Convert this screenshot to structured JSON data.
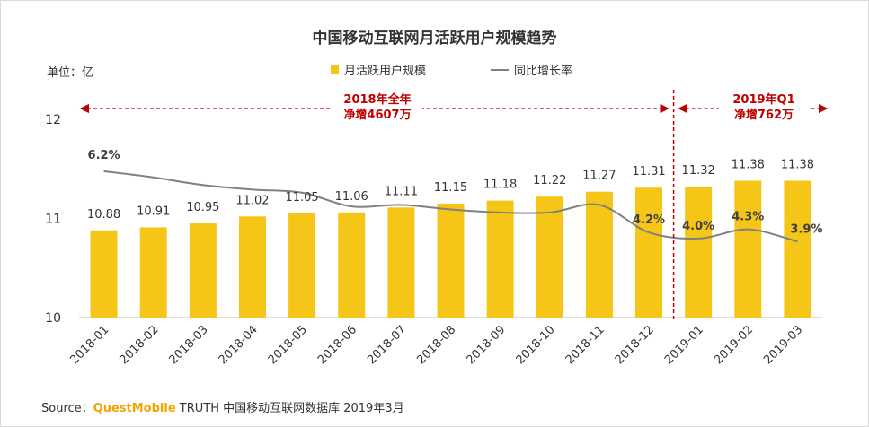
{
  "chart_data": {
    "type": "bar",
    "title": "中国移动互联网月活跃用户规模趋势",
    "unit": "单位：亿",
    "categories": [
      "2018-01",
      "2018-02",
      "2018-03",
      "2018-04",
      "2018-05",
      "2018-06",
      "2018-07",
      "2018-08",
      "2018-09",
      "2018-10",
      "2018-11",
      "2018-12",
      "2019-01",
      "2019-02",
      "2019-03"
    ],
    "series": [
      {
        "name": "月活跃用户规模",
        "type": "bar",
        "color": "#F5C518",
        "values": [
          10.88,
          10.91,
          10.95,
          11.02,
          11.05,
          11.06,
          11.11,
          11.15,
          11.18,
          11.22,
          11.27,
          11.31,
          11.32,
          11.38,
          11.38
        ]
      },
      {
        "name": "同比增长率",
        "type": "line",
        "color": "#808080",
        "values": [
          6.2,
          6.0,
          5.75,
          5.6,
          5.5,
          5.05,
          5.1,
          4.95,
          4.85,
          4.85,
          5.1,
          4.2,
          4.0,
          4.3,
          3.9
        ]
      }
    ],
    "value_labels": [
      "10.88",
      "10.91",
      "10.95",
      "11.02",
      "11.05",
      "11.06",
      "11.11",
      "11.15",
      "11.18",
      "11.22",
      "11.27",
      "11.31",
      "11.32",
      "11.38",
      "11.38"
    ],
    "rate_labels": [
      {
        "index": 0,
        "text": "6.2%"
      },
      {
        "index": 11,
        "text": "4.2%"
      },
      {
        "index": 12,
        "text": "4.0%"
      },
      {
        "index": 13,
        "text": "4.3%"
      },
      {
        "index": 14,
        "text": "3.9%"
      }
    ],
    "y_ticks": [
      "10",
      "11",
      "12"
    ],
    "ylim": [
      10,
      12
    ],
    "annotations": [
      {
        "line1": "2018年全年",
        "line2": "净增4607万"
      },
      {
        "line1": "2019年Q1",
        "line2": "净增762万"
      }
    ]
  },
  "source": {
    "prefix": "Source：",
    "brand": "QuestMobile",
    "rest": " TRUTH 中国移动互联网数据库 2019年3月"
  },
  "colors": {
    "bar": "#F5C518",
    "line": "#808080",
    "annotation": "#C00000"
  }
}
